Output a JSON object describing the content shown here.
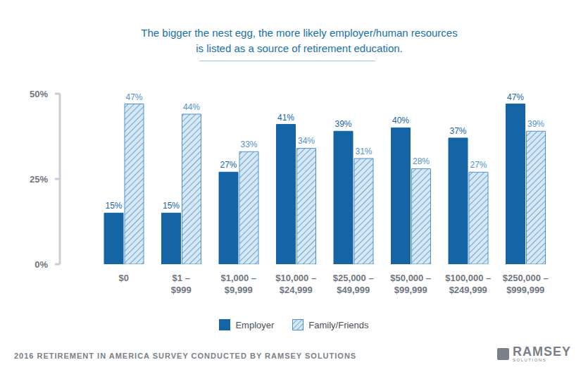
{
  "chart_data": {
    "type": "bar",
    "title": "The bigger the nest egg, the more likely employer/human resources is listed as a source of retirement education.",
    "categories": [
      "$0",
      "$1 – $999",
      "$1,000 – $9,999",
      "$10,000 – $24,999",
      "$25,000 – $49,999",
      "$50,000 – $99,999",
      "$100,000 – $249,999",
      "$250,000 – $999,999"
    ],
    "series": [
      {
        "name": "Employer",
        "color": "#1565a6",
        "values": [
          15,
          15,
          27,
          41,
          39,
          40,
          37,
          47
        ],
        "value_labels": [
          "15%",
          "15%",
          "27%",
          "41%",
          "39%",
          "40%",
          "37%",
          "47%"
        ]
      },
      {
        "name": "Family/Friends",
        "color": "#4f92cc",
        "values": [
          47,
          44,
          33,
          34,
          31,
          28,
          27,
          39
        ],
        "value_labels": [
          "47%",
          "44%",
          "33%",
          "34%",
          "31%",
          "28%",
          "27%",
          "39%"
        ]
      }
    ],
    "ylim": [
      0,
      50
    ],
    "yticks": [
      {
        "value": 0,
        "label": "0%"
      },
      {
        "value": 25,
        "label": "25%"
      },
      {
        "value": 50,
        "label": "50%"
      }
    ],
    "grid": false,
    "data_labels": true,
    "legend": "bottom",
    "annotations": [
      "2016 RETIREMENT IN AMERICA SURVEY CONDUCTED BY RAMSEY SOLUTIONS",
      "RAMSEY",
      "SOLUTIONS"
    ]
  }
}
